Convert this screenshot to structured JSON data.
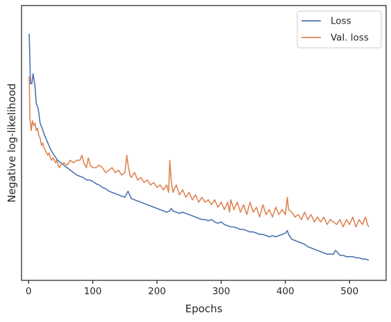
{
  "chart_data": {
    "type": "line",
    "title": "",
    "xlabel": "Epochs",
    "ylabel": "Negative log-likelihood",
    "xlim": [
      -11,
      557
    ],
    "ylim": [
      0,
      100
    ],
    "xticks": [
      "0",
      "100",
      "200",
      "300",
      "400",
      "500"
    ],
    "xtick_values": [
      0,
      100,
      200,
      300,
      400,
      500
    ],
    "yticks": [],
    "grid": false,
    "legend_position": "top-right",
    "series": [
      {
        "name": "Loss",
        "color": "#4c72b0",
        "points": [
          [
            1,
            94.2
          ],
          [
            3,
            74
          ],
          [
            5,
            74
          ],
          [
            7,
            78
          ],
          [
            10,
            73
          ],
          [
            12,
            66
          ],
          [
            15,
            64
          ],
          [
            18,
            58
          ],
          [
            21,
            56
          ],
          [
            25,
            53
          ],
          [
            30,
            50
          ],
          [
            35,
            47
          ],
          [
            40,
            45
          ],
          [
            45,
            43
          ],
          [
            50,
            42
          ],
          [
            55,
            41
          ],
          [
            60,
            40
          ],
          [
            65,
            39
          ],
          [
            70,
            38
          ],
          [
            75,
            37
          ],
          [
            80,
            36.5
          ],
          [
            85,
            36
          ],
          [
            90,
            35
          ],
          [
            95,
            35
          ],
          [
            100,
            34.5
          ],
          [
            105,
            33.5
          ],
          [
            110,
            33
          ],
          [
            115,
            32
          ],
          [
            120,
            31.5
          ],
          [
            125,
            30.5
          ],
          [
            130,
            30
          ],
          [
            135,
            29.5
          ],
          [
            140,
            29
          ],
          [
            145,
            28.5
          ],
          [
            150,
            28
          ],
          [
            153,
            29.5
          ],
          [
            155,
            30.5
          ],
          [
            158,
            28.5
          ],
          [
            160,
            27.5
          ],
          [
            165,
            27
          ],
          [
            170,
            26.5
          ],
          [
            175,
            26
          ],
          [
            180,
            25.5
          ],
          [
            185,
            25
          ],
          [
            190,
            24.5
          ],
          [
            195,
            24
          ],
          [
            200,
            23.5
          ],
          [
            205,
            23
          ],
          [
            210,
            22.5
          ],
          [
            215,
            22
          ],
          [
            220,
            22.5
          ],
          [
            222,
            23.5
          ],
          [
            225,
            22.5
          ],
          [
            230,
            22
          ],
          [
            235,
            21.5
          ],
          [
            240,
            22
          ],
          [
            245,
            21.5
          ],
          [
            250,
            21
          ],
          [
            255,
            20.5
          ],
          [
            260,
            20
          ],
          [
            265,
            19.5
          ],
          [
            270,
            19
          ],
          [
            275,
            19
          ],
          [
            280,
            18.5
          ],
          [
            285,
            19
          ],
          [
            290,
            18
          ],
          [
            295,
            17.5
          ],
          [
            300,
            18
          ],
          [
            305,
            17
          ],
          [
            310,
            16.5
          ],
          [
            315,
            16
          ],
          [
            320,
            16
          ],
          [
            325,
            15.5
          ],
          [
            330,
            15
          ],
          [
            335,
            15
          ],
          [
            340,
            14.5
          ],
          [
            345,
            14
          ],
          [
            350,
            14
          ],
          [
            355,
            13.5
          ],
          [
            360,
            13
          ],
          [
            365,
            13
          ],
          [
            370,
            12.5
          ],
          [
            375,
            12
          ],
          [
            380,
            12.5
          ],
          [
            385,
            12
          ],
          [
            390,
            12.5
          ],
          [
            395,
            13
          ],
          [
            400,
            13.5
          ],
          [
            403,
            14.5
          ],
          [
            405,
            13
          ],
          [
            410,
            11
          ],
          [
            415,
            10.5
          ],
          [
            420,
            10
          ],
          [
            425,
            9.5
          ],
          [
            430,
            9
          ],
          [
            435,
            8
          ],
          [
            440,
            7.5
          ],
          [
            445,
            7
          ],
          [
            450,
            6.5
          ],
          [
            455,
            6
          ],
          [
            460,
            5.5
          ],
          [
            465,
            5
          ],
          [
            470,
            5
          ],
          [
            475,
            5
          ],
          [
            478,
            6.5
          ],
          [
            480,
            6
          ],
          [
            485,
            4.5
          ],
          [
            490,
            4.5
          ],
          [
            495,
            4
          ],
          [
            500,
            4
          ],
          [
            505,
            4
          ],
          [
            510,
            3.5
          ],
          [
            515,
            3.5
          ],
          [
            520,
            3
          ],
          [
            525,
            3
          ],
          [
            530,
            2.5
          ]
        ]
      },
      {
        "name": "Val. loss",
        "color": "#dd8452",
        "points": [
          [
            1,
            77
          ],
          [
            2,
            60
          ],
          [
            4,
            55
          ],
          [
            6,
            59
          ],
          [
            8,
            57
          ],
          [
            10,
            58
          ],
          [
            12,
            55
          ],
          [
            14,
            56
          ],
          [
            16,
            53
          ],
          [
            18,
            52
          ],
          [
            20,
            49
          ],
          [
            22,
            50
          ],
          [
            24,
            48
          ],
          [
            26,
            47
          ],
          [
            28,
            46
          ],
          [
            30,
            45
          ],
          [
            32,
            46
          ],
          [
            34,
            44
          ],
          [
            36,
            43
          ],
          [
            38,
            44
          ],
          [
            40,
            43
          ],
          [
            42,
            42
          ],
          [
            44,
            43
          ],
          [
            46,
            41
          ],
          [
            48,
            40
          ],
          [
            50,
            41
          ],
          [
            55,
            42
          ],
          [
            60,
            41
          ],
          [
            65,
            43
          ],
          [
            70,
            42
          ],
          [
            75,
            43
          ],
          [
            80,
            43
          ],
          [
            83,
            45
          ],
          [
            86,
            42
          ],
          [
            90,
            40
          ],
          [
            93,
            44
          ],
          [
            96,
            41
          ],
          [
            100,
            40
          ],
          [
            105,
            40
          ],
          [
            110,
            41
          ],
          [
            115,
            40
          ],
          [
            120,
            38
          ],
          [
            125,
            39
          ],
          [
            130,
            40
          ],
          [
            135,
            38
          ],
          [
            140,
            39
          ],
          [
            145,
            37
          ],
          [
            150,
            38
          ],
          [
            153,
            45
          ],
          [
            155,
            41
          ],
          [
            158,
            37
          ],
          [
            160,
            36
          ],
          [
            165,
            38
          ],
          [
            170,
            35
          ],
          [
            175,
            36
          ],
          [
            180,
            34
          ],
          [
            185,
            35
          ],
          [
            190,
            33
          ],
          [
            195,
            34
          ],
          [
            200,
            32
          ],
          [
            205,
            33
          ],
          [
            210,
            31
          ],
          [
            215,
            33
          ],
          [
            218,
            30
          ],
          [
            220,
            43
          ],
          [
            222,
            35
          ],
          [
            225,
            30
          ],
          [
            230,
            33
          ],
          [
            235,
            29
          ],
          [
            240,
            31
          ],
          [
            245,
            28
          ],
          [
            250,
            30
          ],
          [
            255,
            27
          ],
          [
            260,
            29
          ],
          [
            265,
            26
          ],
          [
            270,
            28
          ],
          [
            275,
            26
          ],
          [
            280,
            27
          ],
          [
            285,
            25
          ],
          [
            290,
            27
          ],
          [
            295,
            24
          ],
          [
            300,
            26
          ],
          [
            305,
            23
          ],
          [
            310,
            26
          ],
          [
            313,
            22
          ],
          [
            315,
            27
          ],
          [
            320,
            23
          ],
          [
            325,
            26
          ],
          [
            330,
            22
          ],
          [
            335,
            25
          ],
          [
            340,
            21
          ],
          [
            345,
            26
          ],
          [
            350,
            22
          ],
          [
            355,
            24
          ],
          [
            360,
            20
          ],
          [
            365,
            25
          ],
          [
            370,
            21
          ],
          [
            375,
            23
          ],
          [
            380,
            20
          ],
          [
            385,
            24
          ],
          [
            390,
            21
          ],
          [
            395,
            23
          ],
          [
            400,
            21
          ],
          [
            403,
            28
          ],
          [
            405,
            23
          ],
          [
            410,
            22
          ],
          [
            415,
            20
          ],
          [
            420,
            21
          ],
          [
            425,
            19
          ],
          [
            430,
            22
          ],
          [
            435,
            19
          ],
          [
            440,
            21
          ],
          [
            445,
            18
          ],
          [
            450,
            20
          ],
          [
            455,
            18
          ],
          [
            460,
            20
          ],
          [
            465,
            17
          ],
          [
            470,
            19
          ],
          [
            475,
            18
          ],
          [
            480,
            17
          ],
          [
            485,
            19
          ],
          [
            490,
            16
          ],
          [
            495,
            19
          ],
          [
            500,
            17
          ],
          [
            505,
            20
          ],
          [
            510,
            16
          ],
          [
            515,
            19
          ],
          [
            520,
            17
          ],
          [
            525,
            20
          ],
          [
            528,
            17
          ],
          [
            530,
            16
          ]
        ]
      }
    ]
  }
}
